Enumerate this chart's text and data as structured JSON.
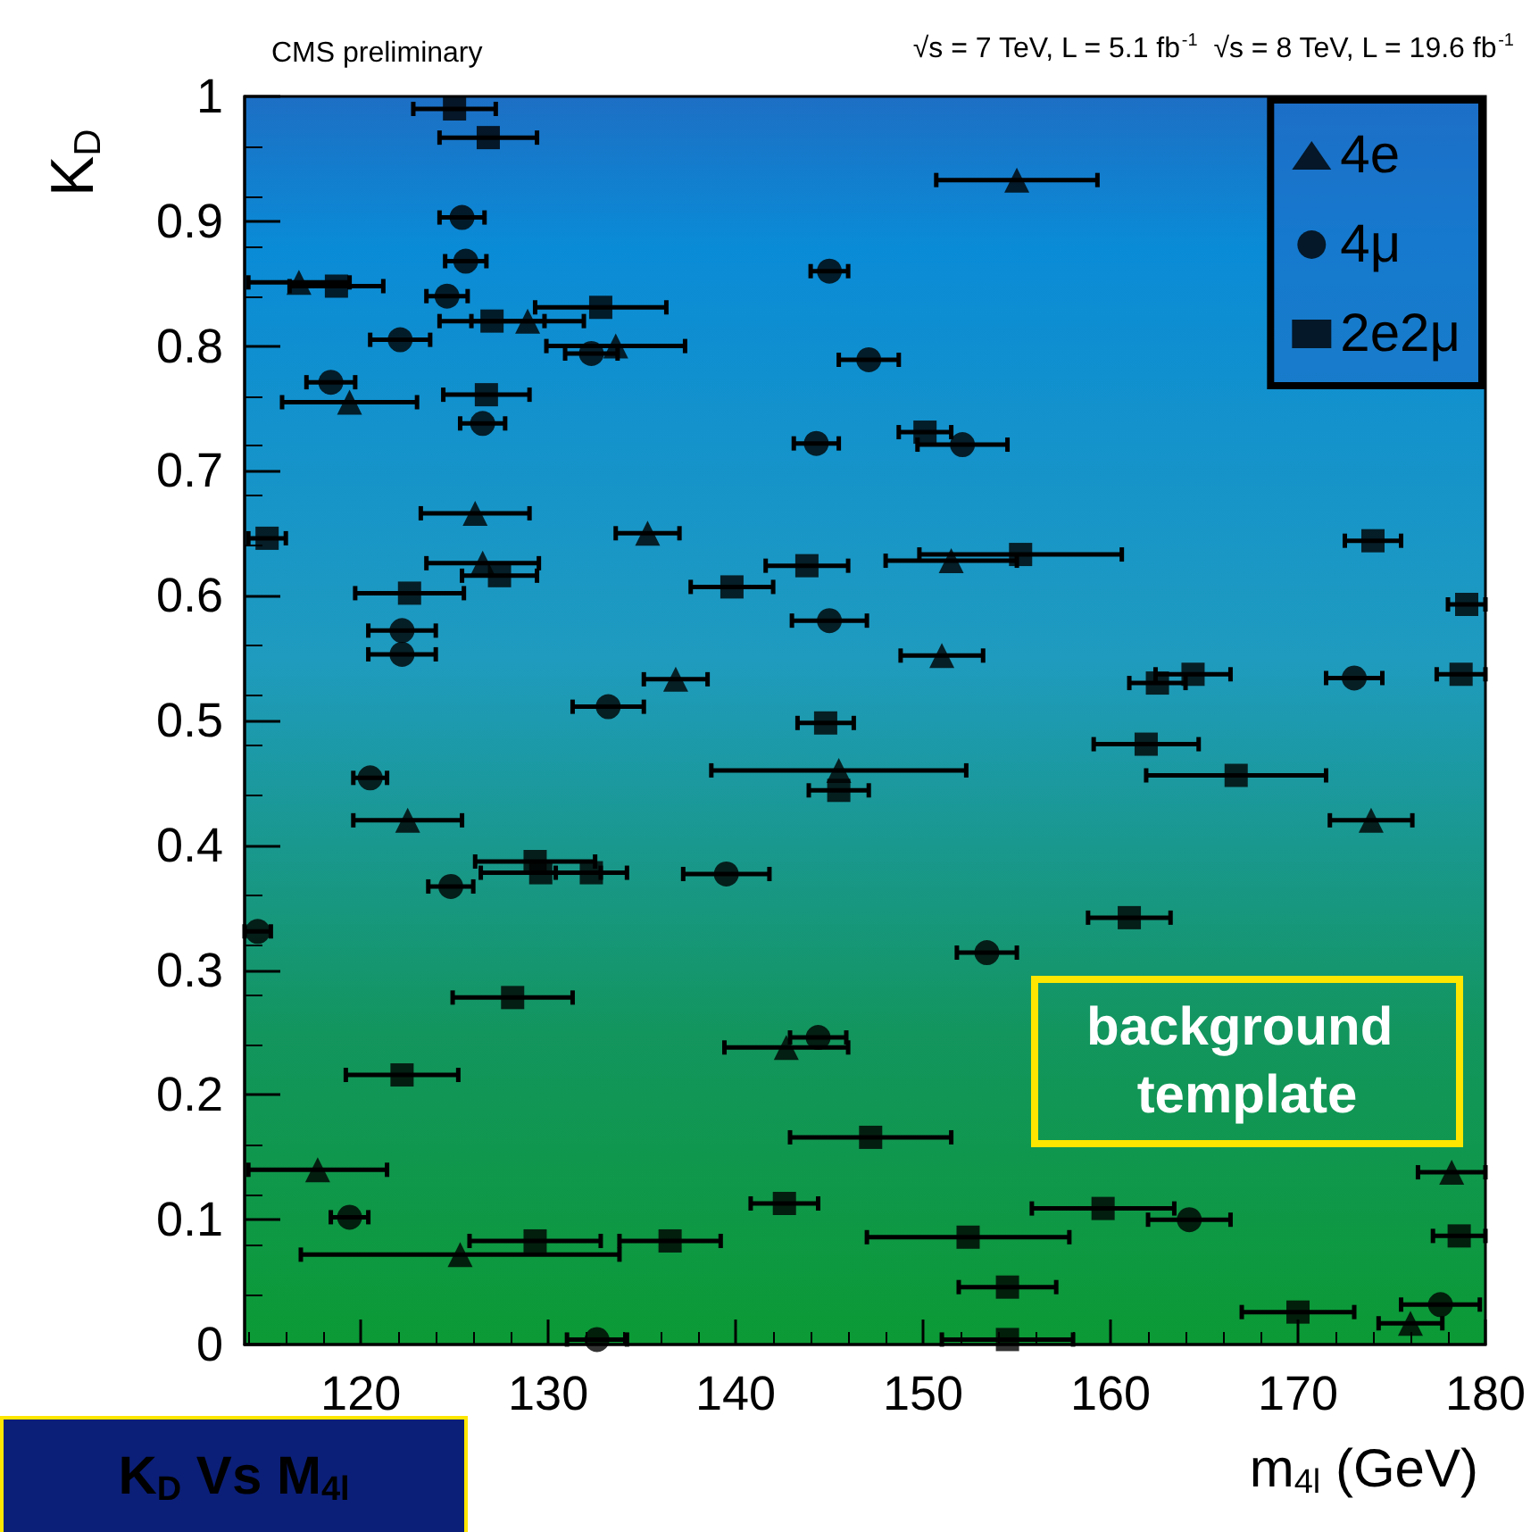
{
  "chart_data": {
    "type": "scatter",
    "title": "CMS preliminary",
    "subtitle": "√s = 7 TeV, L = 5.1 fb$^{-1}$  √s = 8 TeV, L = 19.6 fb$^{-1}$",
    "xlabel": "m$_{4l}$ (GeV)",
    "ylabel": "K$_{D}$",
    "annotations": [
      "background template",
      "K$_{D}$ Vs M$_{4l}$"
    ],
    "xlim": [
      113.8,
      180
    ],
    "xticks": [
      120,
      130,
      140,
      150,
      160,
      170,
      180
    ],
    "ylim": [
      0,
      1
    ],
    "yticks": [
      0,
      0.1,
      0.2,
      0.3,
      0.4,
      0.5,
      0.6,
      0.7,
      0.8,
      0.9,
      1
    ],
    "legend": "top right",
    "series": [
      {
        "name": "4e",
        "color": "#000000",
        "marker": "triangle",
        "x": [
          155.0,
          116.7,
          119.4,
          128.9,
          133.6,
          126.1,
          126.5,
          135.3,
          136.8,
          151.5,
          151.0,
          145.5,
          122.5,
          142.7,
          117.7,
          125.3,
          173.9,
          178.2,
          176.0
        ],
        "values": [
          0.933,
          0.851,
          0.755,
          0.82,
          0.8,
          0.666,
          0.626,
          0.65,
          0.533,
          0.628,
          0.552,
          0.46,
          0.42,
          0.238,
          0.14,
          0.072,
          0.42,
          0.138,
          0.017
        ],
        "xerrors": [
          4.3,
          2.7,
          3.6,
          3,
          3.7,
          2.9,
          3,
          1.7,
          1.7,
          3.5,
          2.2,
          6.8,
          2.9,
          3.3,
          3.7,
          8.5,
          2.2,
          1.8,
          1.7
        ]
      },
      {
        "name": "4μ",
        "color": "#000000",
        "marker": "circle",
        "x": [
          125.4,
          125.6,
          124.6,
          122.1,
          118.4,
          126.5,
          132.3,
          145.0,
          147.1,
          144.3,
          152.1,
          145.0,
          122.2,
          122.2,
          133.2,
          120.5,
          124.8,
          139.5,
          114.5,
          144.4,
          119.4,
          132.6,
          153.4,
          164.2,
          177.6,
          173.0
        ],
        "values": [
          0.903,
          0.868,
          0.84,
          0.805,
          0.771,
          0.738,
          0.794,
          0.86,
          0.789,
          0.722,
          0.721,
          0.58,
          0.572,
          0.553,
          0.511,
          0.454,
          0.367,
          0.377,
          0.331,
          0.246,
          0.102,
          0.004,
          0.314,
          0.1,
          0.032,
          0.534
        ],
        "xerrors": [
          1.2,
          1.1,
          1.1,
          1.6,
          1.3,
          1.2,
          1.4,
          1,
          1.6,
          1.2,
          2.4,
          2,
          1.8,
          1.8,
          1.9,
          0.9,
          1.2,
          2.3,
          0.7,
          1.5,
          1,
          1.6,
          1.6,
          2.2,
          2.1,
          1.5
        ]
      },
      {
        "name": "2e2μ",
        "color": "#000000",
        "marker": "square",
        "x": [
          125.0,
          126.8,
          118.7,
          132.8,
          127.0,
          126.7,
          150.1,
          115.0,
          143.8,
          139.8,
          122.6,
          127.4,
          155.2,
          174.0,
          179.0,
          178.7,
          162.5,
          164.4,
          161.9,
          166.7,
          161.0,
          144.8,
          145.5,
          129.3,
          129.6,
          132.3,
          128.1,
          122.2,
          147.2,
          142.6,
          129.3,
          136.5,
          159.6,
          152.4,
          178.6,
          154.5,
          170.0,
          154.5
        ],
        "values": [
          0.99,
          0.967,
          0.848,
          0.831,
          0.82,
          0.761,
          0.731,
          0.646,
          0.624,
          0.607,
          0.602,
          0.616,
          0.633,
          0.644,
          0.593,
          0.537,
          0.53,
          0.537,
          0.481,
          0.456,
          0.342,
          0.498,
          0.444,
          0.387,
          0.378,
          0.378,
          0.278,
          0.216,
          0.166,
          0.113,
          0.083,
          0.083,
          0.109,
          0.086,
          0.087,
          0.046,
          0.026,
          0.004
        ],
        "xerrors": [
          2.2,
          2.6,
          2.5,
          3.5,
          2.8,
          2.3,
          1.4,
          1.0,
          2.2,
          2.2,
          2.9,
          2,
          5.4,
          1.5,
          1.0,
          1.3,
          1.5,
          2,
          2.8,
          4.8,
          2.2,
          1.5,
          1.6,
          3.2,
          3.2,
          1.9,
          3.2,
          3,
          4.3,
          1.8,
          3.5,
          2.7,
          3.8,
          5.4,
          1.4,
          2.6,
          3,
          3.5
        ]
      }
    ]
  }
}
